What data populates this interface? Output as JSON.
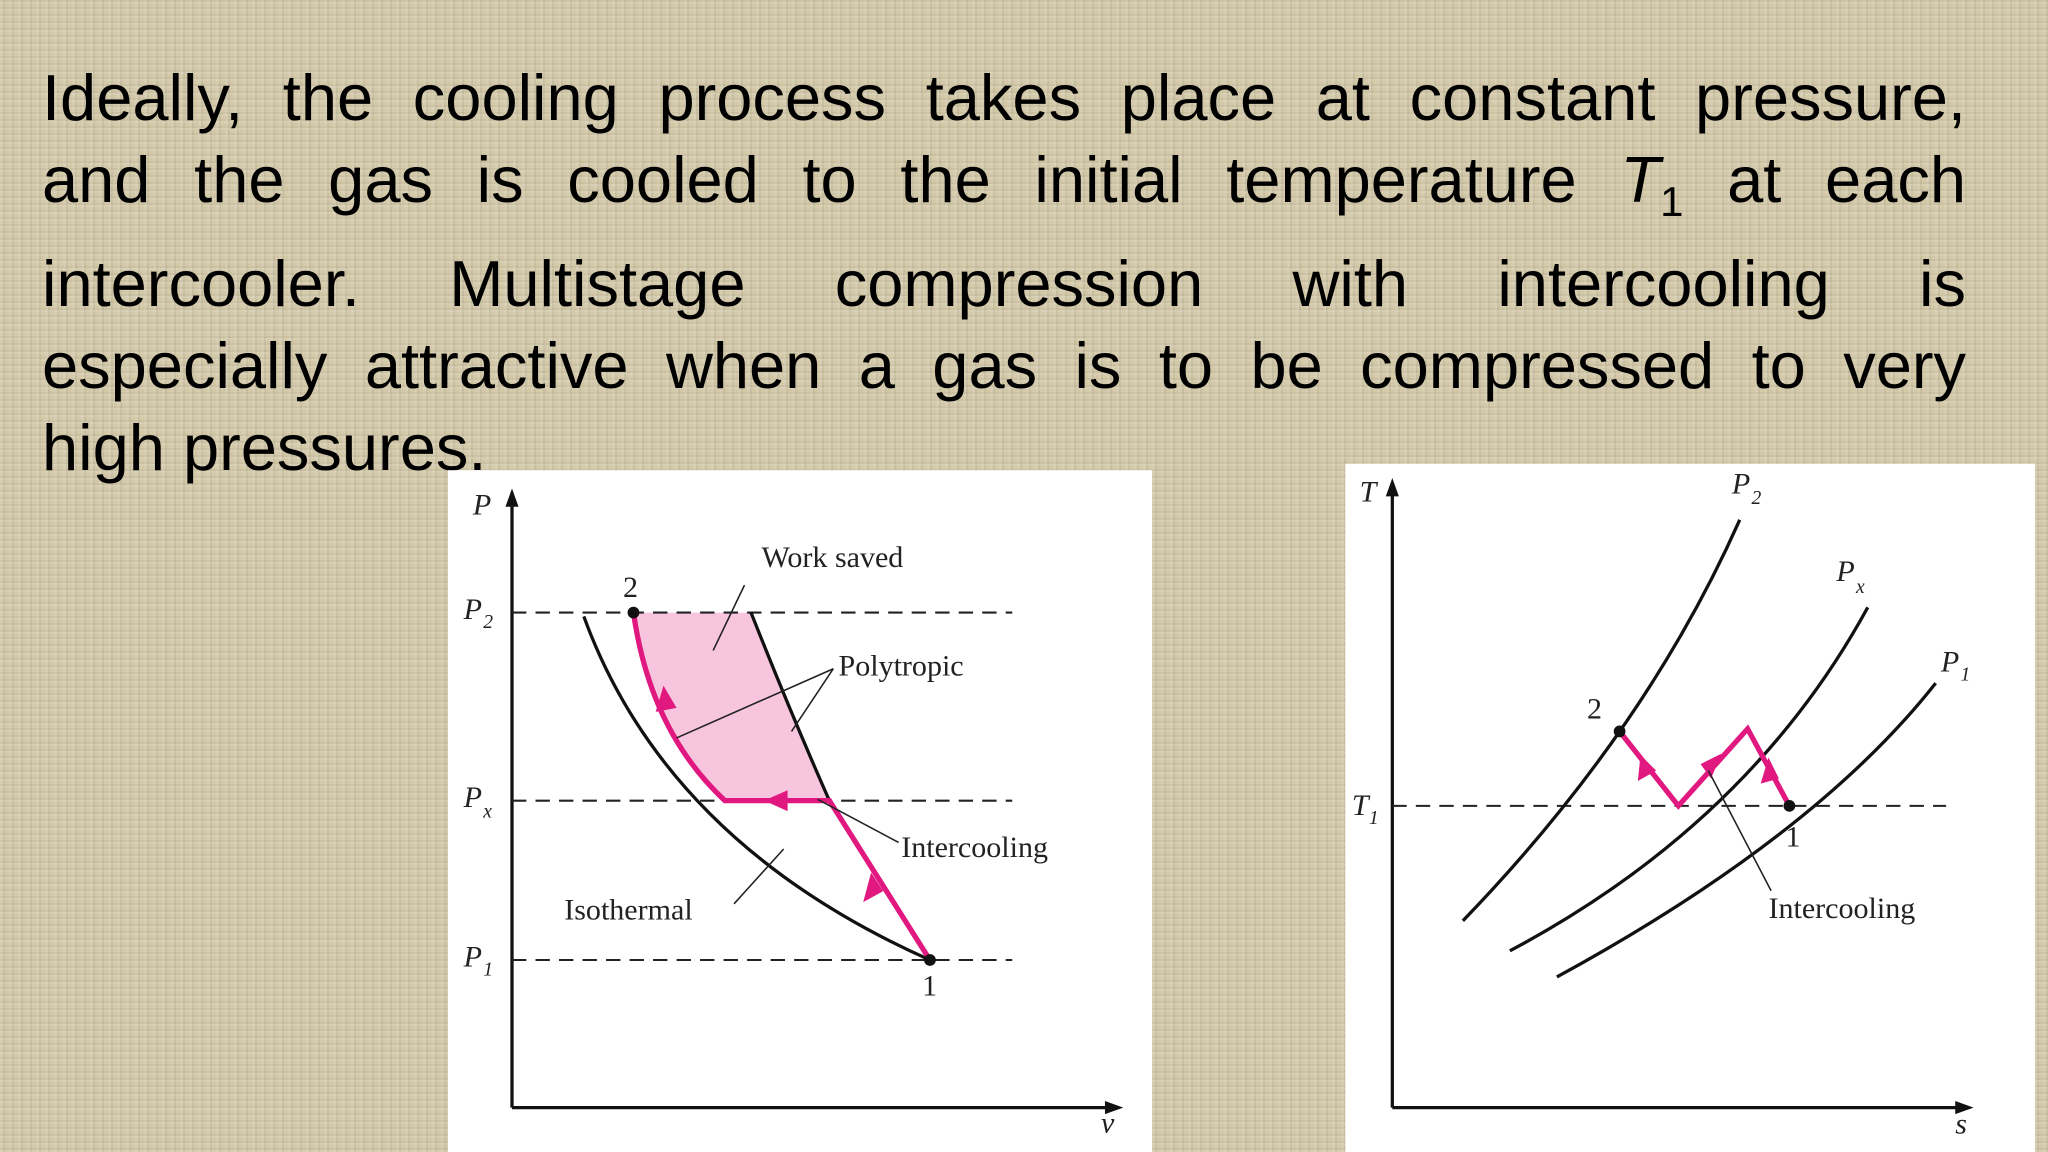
{
  "paragraph": [
    "Ideally, the cooling process takes place at constant pressure,",
    {
      "before": "and the gas is cooled to the initial temperature",
      "symbol": "T",
      "subscript": "1",
      "after": "at each"
    },
    "intercooler. Multistage compression with intercooling is",
    "especially attractive when a gas is to be compressed to very",
    "high pressures."
  ],
  "pv_diagram": {
    "y_axis": "P",
    "x_axis": "v",
    "pressure_levels": [
      {
        "symbol": "P",
        "subscript": "2"
      },
      {
        "symbol": "P",
        "subscript": "x"
      },
      {
        "symbol": "P",
        "subscript": "1"
      }
    ],
    "states": [
      "2",
      "1"
    ],
    "labels": {
      "work_saved": "Work saved",
      "polytropic": "Polytropic",
      "intercooling": "Intercooling",
      "isothermal": "Isothermal"
    }
  },
  "ts_diagram": {
    "y_axis": "T",
    "x_axis": "s",
    "isobars": [
      {
        "symbol": "P",
        "subscript": "2"
      },
      {
        "symbol": "P",
        "subscript": "x"
      },
      {
        "symbol": "P",
        "subscript": "1"
      }
    ],
    "temperature_level": {
      "symbol": "T",
      "subscript": "1"
    },
    "states": [
      "2",
      "1"
    ],
    "labels": {
      "intercooling": "Intercooling"
    }
  }
}
